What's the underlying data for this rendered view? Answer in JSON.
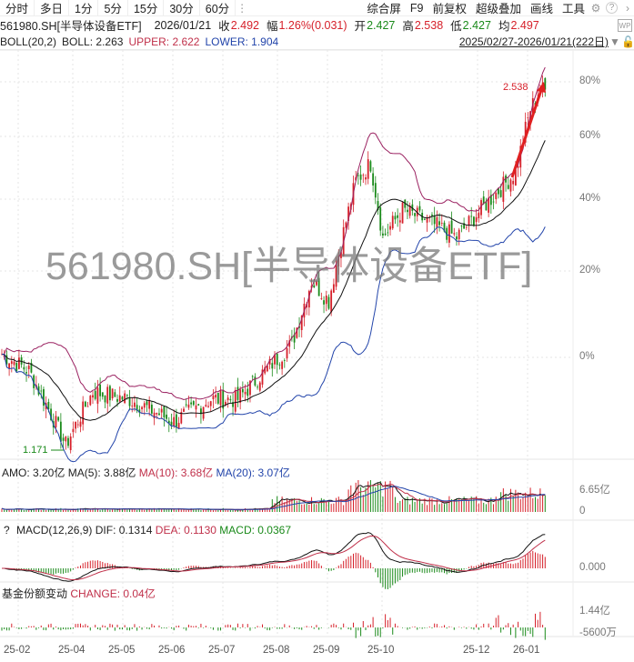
{
  "toolbar": {
    "tabs": [
      "分时",
      "多日",
      "1分",
      "5分",
      "15分",
      "30分",
      "60分"
    ],
    "right": [
      "综合屏",
      "F9",
      "前复权",
      "超级叠加",
      "画线",
      "工具"
    ]
  },
  "info": {
    "symbol": "561980.SH[半导体设备ETF]",
    "date": "2026/01/21",
    "close_label": "收",
    "close": "2.492",
    "change_label": "幅",
    "change": "1.26%(0.031)",
    "open_label": "开",
    "open": "2.427",
    "high_label": "高",
    "high": "2.538",
    "low_label": "低",
    "low": "2.427",
    "avg_label": "均",
    "avg": "2.497"
  },
  "boll": {
    "name": "BOLL(20,2)",
    "boll": "BOLL: 2.263",
    "upper": "UPPER: 2.622",
    "lower": "LOWER: 1.904",
    "range": "2025/02/27-2026/01/21(222日)"
  },
  "main": {
    "watermark": "561980.SH[半导体设备ETF]",
    "max_label": "2.538",
    "min_label": "1.171",
    "yticks": [
      "80%",
      "60%",
      "40%",
      "20%",
      "0%"
    ]
  },
  "volume": {
    "amo": "AMO: 3.20亿",
    "ma5": "MA(5): 3.88亿",
    "ma10": "MA(10): 3.68亿",
    "ma20": "MA(20): 3.07亿",
    "top": "6.65亿",
    "bottom": "0"
  },
  "macd": {
    "help": "?",
    "name": "MACD(12,26,9)",
    "dif": "DIF: 0.1314",
    "dea": "DEA: 0.1130",
    "macd": "MACD: 0.0367",
    "zero": "0.000"
  },
  "fund": {
    "name": "基金份额变动",
    "change": "CHANGE: 0.04亿",
    "top": "1.44亿",
    "bottom": "-5600万"
  },
  "xaxis": [
    "25-02",
    "25-04",
    "25-05",
    "25-06",
    "25-07",
    "25-08",
    "25-09",
    "25-10",
    "25-12",
    "26-01"
  ],
  "colors": {
    "up": "#d6202a",
    "down": "#1a8a1a",
    "boll_mid": "#111111",
    "boll_upper": "#9a2060",
    "boll_lower": "#2244aa"
  },
  "chart_data": {
    "type": "candlestick",
    "days": 222,
    "keypoints": [
      [
        0,
        1.42
      ],
      [
        11,
        1.37
      ],
      [
        26,
        1.17
      ],
      [
        37,
        1.31
      ],
      [
        52,
        1.29
      ],
      [
        70,
        1.23
      ],
      [
        85,
        1.29
      ],
      [
        96,
        1.29
      ],
      [
        107,
        1.37
      ],
      [
        118,
        1.45
      ],
      [
        126,
        1.66
      ],
      [
        133,
        1.59
      ],
      [
        144,
        2.05
      ],
      [
        150,
        2.13
      ],
      [
        155,
        1.82
      ],
      [
        163,
        1.93
      ],
      [
        174,
        1.88
      ],
      [
        185,
        1.82
      ],
      [
        193,
        1.91
      ],
      [
        202,
        2.01
      ],
      [
        209,
        2.09
      ],
      [
        215,
        2.39
      ],
      [
        219,
        2.49
      ],
      [
        221,
        2.492
      ]
    ],
    "high": 2.538,
    "low": 1.171
  }
}
